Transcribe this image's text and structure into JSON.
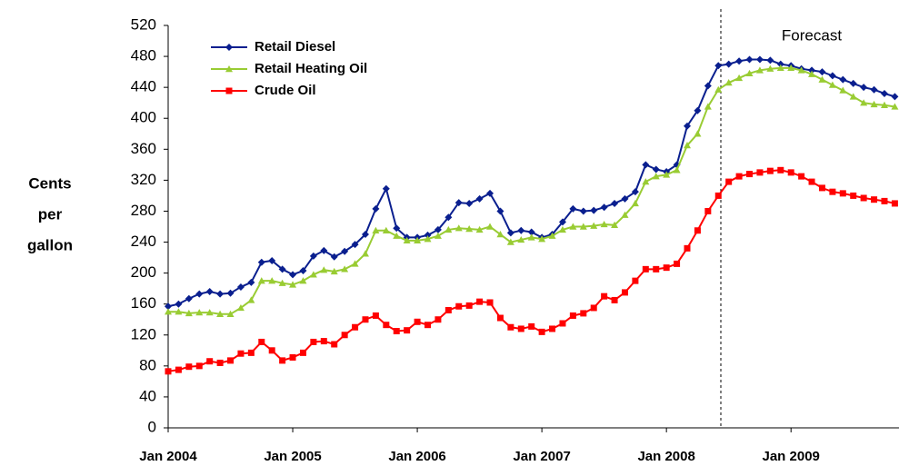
{
  "chart_data": {
    "type": "line",
    "annotation": "Forecast",
    "y_label_lines": [
      "Cents",
      "per",
      "gallon"
    ],
    "categories": [
      "Jan 2004",
      null,
      null,
      null,
      null,
      null,
      null,
      null,
      null,
      null,
      null,
      null,
      "Jan 2005",
      null,
      null,
      null,
      null,
      null,
      null,
      null,
      null,
      null,
      null,
      null,
      "Jan 2006",
      null,
      null,
      null,
      null,
      null,
      null,
      null,
      null,
      null,
      null,
      null,
      "Jan 2007",
      null,
      null,
      null,
      null,
      null,
      null,
      null,
      null,
      null,
      null,
      null,
      "Jan 2008",
      null,
      null,
      null,
      null,
      null,
      null,
      null,
      null,
      null,
      null,
      null,
      "Jan 2009",
      null,
      null,
      null,
      null,
      null,
      null,
      null,
      null,
      null,
      null
    ],
    "series": [
      {
        "name": "Retail Diesel",
        "color": "#0a1f8f",
        "marker": "diamond",
        "values": [
          157,
          160,
          167,
          173,
          176,
          173,
          174,
          182,
          188,
          214,
          216,
          205,
          198,
          203,
          222,
          229,
          221,
          228,
          237,
          250,
          283,
          309,
          258,
          246,
          246,
          249,
          256,
          272,
          291,
          290,
          296,
          303,
          280,
          252,
          255,
          253,
          246,
          250,
          266,
          283,
          280,
          281,
          285,
          290,
          296,
          305,
          340,
          334,
          331,
          340,
          390,
          410,
          442,
          468,
          470,
          474,
          476,
          476,
          475,
          470,
          468,
          464,
          462,
          460,
          455,
          450,
          445,
          440,
          437,
          432,
          428
        ]
      },
      {
        "name": "Retail Heating Oil",
        "color": "#99cc33",
        "marker": "triangle",
        "values": [
          150,
          150,
          148,
          149,
          149,
          147,
          147,
          155,
          165,
          190,
          190,
          187,
          185,
          190,
          198,
          204,
          202,
          205,
          212,
          225,
          255,
          255,
          248,
          242,
          242,
          244,
          248,
          256,
          258,
          257,
          256,
          260,
          250,
          240,
          243,
          246,
          244,
          248,
          256,
          260,
          260,
          261,
          263,
          262,
          275,
          290,
          318,
          325,
          327,
          333,
          365,
          380,
          415,
          437,
          446,
          452,
          458,
          462,
          464,
          465,
          465,
          462,
          457,
          450,
          443,
          436,
          428,
          420,
          418,
          417,
          415
        ]
      },
      {
        "name": "Crude Oil",
        "color": "#ff0000",
        "marker": "square",
        "values": [
          73,
          75,
          79,
          80,
          86,
          84,
          87,
          96,
          97,
          111,
          100,
          87,
          91,
          97,
          111,
          112,
          108,
          120,
          130,
          140,
          145,
          133,
          125,
          126,
          137,
          133,
          140,
          152,
          157,
          158,
          163,
          162,
          142,
          130,
          128,
          131,
          124,
          128,
          135,
          145,
          148,
          155,
          170,
          165,
          175,
          190,
          205,
          205,
          207,
          212,
          232,
          255,
          280,
          300,
          318,
          325,
          328,
          330,
          332,
          333,
          330,
          325,
          318,
          310,
          305,
          303,
          300,
          297,
          295,
          293,
          290
        ]
      }
    ],
    "ylim": [
      0,
      520
    ],
    "yticks": [
      0,
      40,
      80,
      120,
      160,
      200,
      240,
      280,
      320,
      360,
      400,
      440,
      480,
      520
    ],
    "grid": false,
    "legend": "top-left"
  }
}
